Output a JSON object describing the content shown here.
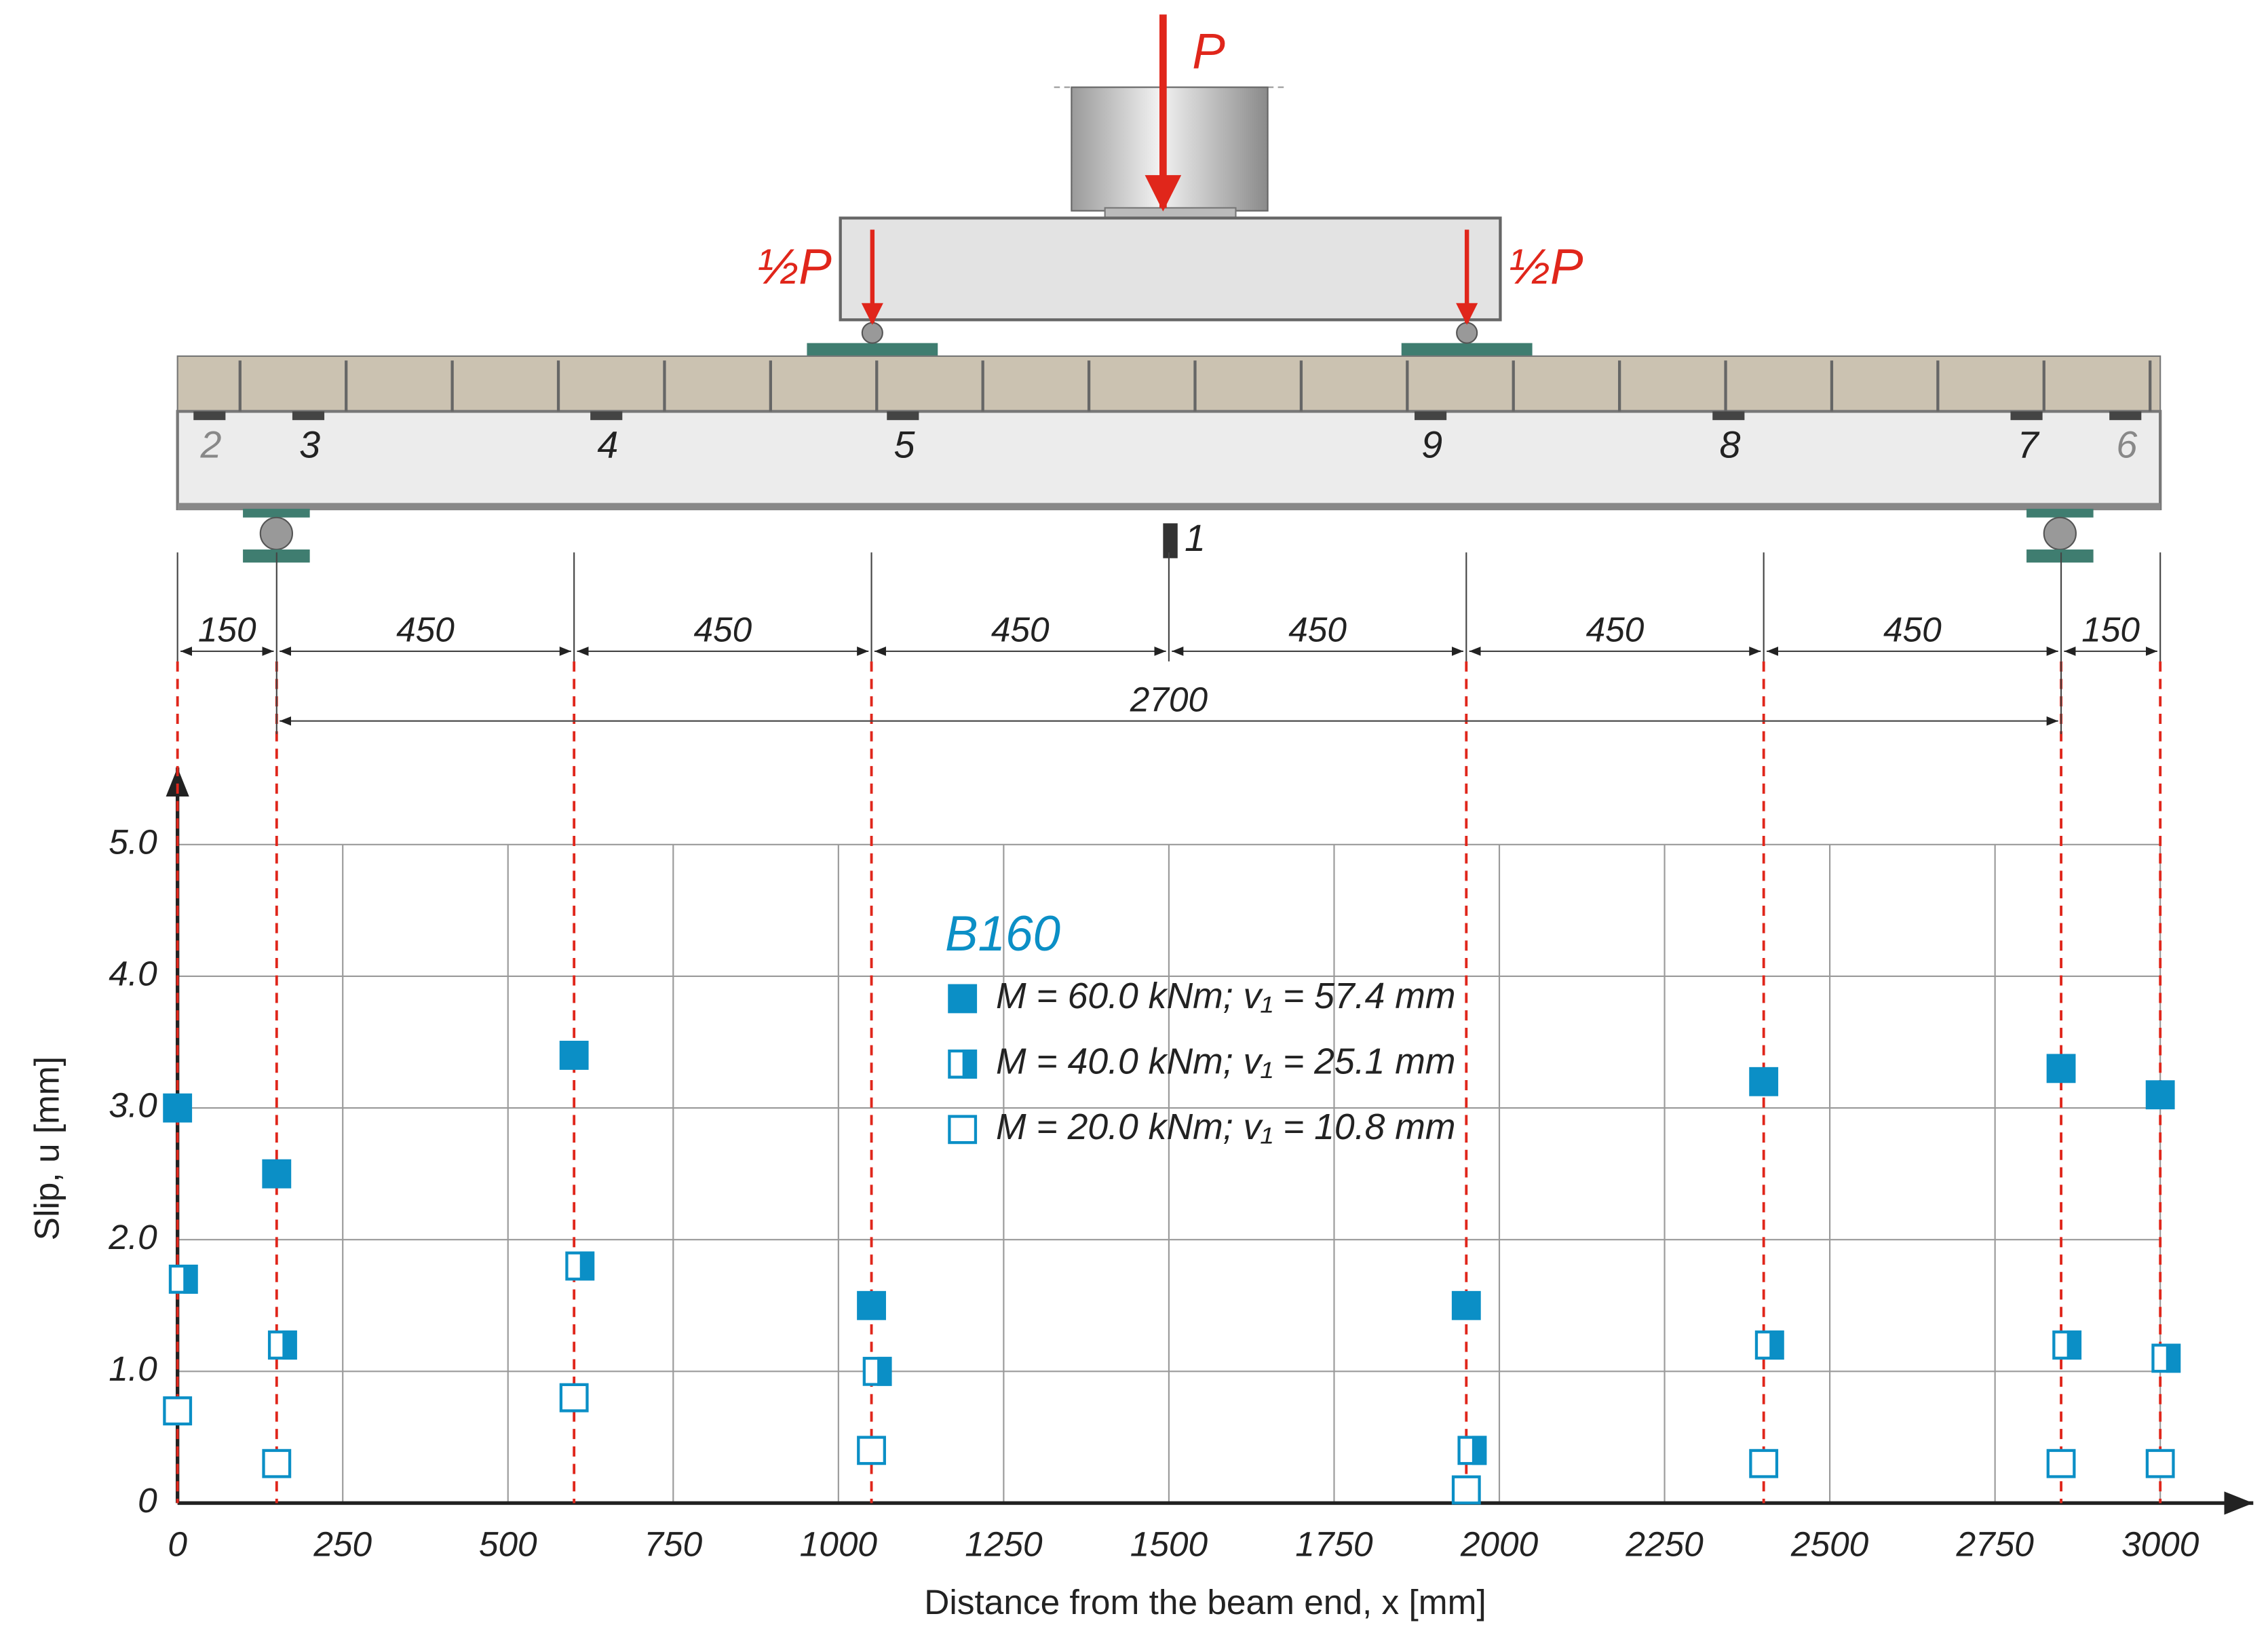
{
  "chart_data": {
    "type": "scatter",
    "xlabel": "Distance from the beam end, x [mm]",
    "ylabel": "Slip, u [mm]",
    "legend_title": "B160",
    "x": [
      0,
      150,
      600,
      1050,
      1950,
      2400,
      2850,
      3000
    ],
    "series": [
      {
        "name": "M = 60.0 kNm; v₁ = 57.4 mm",
        "color": "#0b8fc6",
        "marker": "filled",
        "values": [
          3.0,
          2.5,
          3.4,
          1.5,
          1.5,
          3.2,
          3.3,
          3.1
        ]
      },
      {
        "name": "M = 40.0 kNm; v₁ = 25.1 mm",
        "color": "#0b8fc6",
        "marker": "half",
        "values": [
          1.7,
          1.2,
          1.8,
          1.0,
          0.4,
          1.2,
          1.2,
          1.1
        ]
      },
      {
        "name": "M = 20.0 kNm; v₁ = 10.8 mm",
        "color": "#0b8fc6",
        "marker": "open",
        "values": [
          0.7,
          0.3,
          0.8,
          0.4,
          0.1,
          0.3,
          0.3,
          0.3
        ]
      }
    ],
    "xlim": [
      0,
      3000
    ],
    "ylim": [
      0,
      5
    ],
    "xticks": [
      0,
      250,
      500,
      750,
      1000,
      1250,
      1500,
      1750,
      2000,
      2250,
      2500,
      2750,
      3000
    ],
    "yticks": [
      0,
      {
        "value": 1,
        "label": "1.0"
      },
      {
        "value": 2,
        "label": "2.0"
      },
      {
        "value": 3,
        "label": "3.0"
      },
      {
        "value": 4,
        "label": "4.0"
      },
      {
        "value": 5,
        "label": "5.0"
      }
    ],
    "grid": true
  },
  "diagram": {
    "load": "P",
    "half_loads": [
      "½P",
      "½P"
    ],
    "sensor_labels": [
      "2",
      "3",
      "4",
      "5",
      "9",
      "8",
      "7",
      "6",
      "1"
    ],
    "spans": [
      150,
      450,
      450,
      450,
      450,
      450,
      450,
      150
    ],
    "support_span": 2700
  }
}
